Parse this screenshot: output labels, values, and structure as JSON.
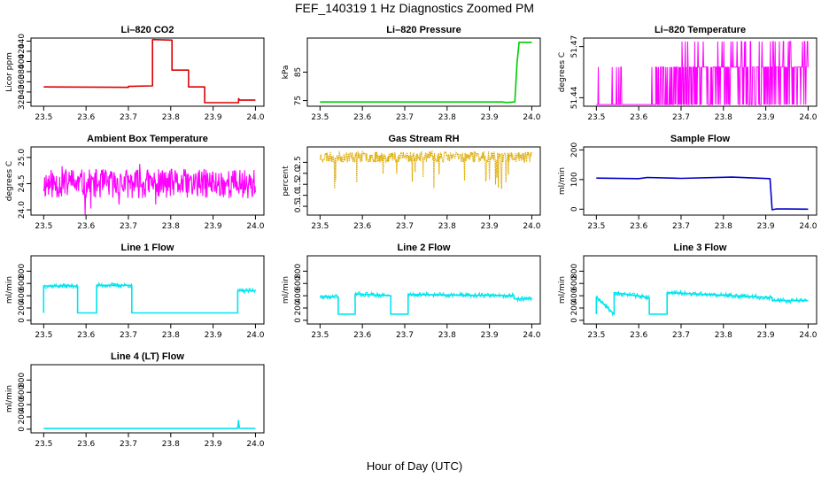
{
  "figure": {
    "title": "FEF_140319  1 Hz Diagnostics Zoomed PM",
    "xlabel": "Hour of Day (UTC)"
  },
  "chart_data": [
    {
      "type": "line",
      "title": "Li–820 CO2",
      "ylabel": "Licor ppm",
      "color": "#dd0000",
      "xlim": [
        23.47,
        24.02
      ],
      "xticks": [
        "23.5",
        "23.6",
        "23.7",
        "23.8",
        "23.9",
        "24.0"
      ],
      "ylim": [
        312,
        446
      ],
      "yticks": [
        "320",
        "340",
        "360",
        "380",
        "400",
        "420",
        "440"
      ],
      "series": [
        {
          "x": [
            23.5,
            23.7,
            23.7,
            23.757,
            23.757,
            23.803,
            23.803,
            23.842,
            23.842,
            23.88,
            23.88,
            23.96,
            23.96,
            23.963,
            23.963,
            24.0
          ],
          "y": [
            350,
            349,
            351,
            352,
            443,
            442,
            383,
            383,
            350,
            350,
            319,
            319,
            327,
            324,
            324,
            324
          ]
        }
      ]
    },
    {
      "type": "line",
      "title": "Li–820 Pressure",
      "ylabel": "kPa",
      "color": "#00cc00",
      "xlim": [
        23.47,
        24.02
      ],
      "xticks": [
        "23.5",
        "23.6",
        "23.7",
        "23.8",
        "23.9",
        "24.0"
      ],
      "ylim": [
        73,
        97
      ],
      "yticks": [
        "75",
        "85"
      ],
      "series": [
        {
          "x": [
            23.5,
            23.93,
            23.94,
            23.96,
            23.965,
            23.97,
            24.0
          ],
          "y": [
            74.5,
            74.5,
            74.3,
            74.5,
            88,
            95.5,
            95.5
          ]
        }
      ]
    },
    {
      "type": "line",
      "title": "Li–820 Temperature",
      "ylabel": "degrees C",
      "color": "#ff00ff",
      "xlim": [
        23.47,
        24.02
      ],
      "xticks": [
        "23.5",
        "23.6",
        "23.7",
        "23.8",
        "23.9",
        "24.0"
      ],
      "ylim": [
        51.435,
        51.475
      ],
      "yticks": [
        "51.44",
        "51.47"
      ],
      "noise": {
        "kind": "binary",
        "low": 51.436,
        "high": 51.458,
        "extra": 51.473,
        "seed": 7,
        "segments": [
          [
            23.5,
            23.535,
            0.05
          ],
          [
            23.535,
            23.56,
            0.25
          ],
          [
            23.56,
            23.64,
            0.05
          ],
          [
            23.64,
            23.7,
            0.3
          ],
          [
            23.7,
            24.0,
            0.65
          ]
        ]
      }
    },
    {
      "type": "line",
      "title": "Ambient Box Temperature",
      "ylabel": "degrees C",
      "color": "#ff00ff",
      "xlim": [
        23.47,
        24.02
      ],
      "xticks": [
        "23.5",
        "23.6",
        "23.7",
        "23.8",
        "23.9",
        "24.0"
      ],
      "ylim": [
        23.9,
        25.2
      ],
      "yticks": [
        "24.0",
        "24.5",
        "25.0"
      ],
      "noise": {
        "kind": "band",
        "center": 24.5,
        "amp": 0.28,
        "spike": 0.6,
        "spikeProb": 0.03,
        "seed": 11,
        "segments": [
          [
            23.5,
            24.0,
            1
          ]
        ]
      }
    },
    {
      "type": "line",
      "title": "Gas Stream RH",
      "ylabel": "percent",
      "color": "#ddaa00",
      "xlim": [
        23.47,
        24.02
      ],
      "xticks": [
        "23.5",
        "23.6",
        "23.7",
        "23.8",
        "23.9",
        "24.0"
      ],
      "ylim": [
        0.1,
        3.2
      ],
      "yticks": [
        "0.5",
        "1.0",
        "1.5",
        "2.0",
        "2.5"
      ],
      "noise": {
        "kind": "band",
        "center": 2.75,
        "amp": 0.25,
        "spike": -1.5,
        "spikeProb": 0.04,
        "seed": 23,
        "segments": [
          [
            23.5,
            24.0,
            1
          ]
        ]
      }
    },
    {
      "type": "line",
      "title": "Sample Flow",
      "ylabel": "ml/min",
      "color": "#0000cc",
      "xlim": [
        23.47,
        24.02
      ],
      "xticks": [
        "23.5",
        "23.6",
        "23.7",
        "23.8",
        "23.9",
        "24.0"
      ],
      "ylim": [
        -20,
        210
      ],
      "yticks": [
        "0",
        "100",
        "200"
      ],
      "series": [
        {
          "x": [
            23.5,
            23.6,
            23.62,
            23.7,
            23.82,
            23.91,
            23.915,
            23.925,
            24.0
          ],
          "y": [
            105,
            103,
            107,
            104,
            108,
            103,
            -2,
            1,
            0
          ]
        }
      ]
    },
    {
      "type": "line",
      "title": "Line 1 Flow",
      "ylabel": "ml/min",
      "color": "#00e5ee",
      "xlim": [
        23.47,
        24.02
      ],
      "xticks": [
        "23.5",
        "23.6",
        "23.7",
        "23.8",
        "23.9",
        "24.0"
      ],
      "ylim": [
        -60,
        1050
      ],
      "yticks": [
        "0",
        "200",
        "400",
        "600",
        "800"
      ],
      "series": [
        {
          "x": [
            23.5,
            23.5,
            23.58,
            23.58,
            23.625,
            23.625,
            23.708,
            23.708,
            23.958,
            23.958,
            24.0
          ],
          "y": [
            120,
            560,
            560,
            120,
            120,
            570,
            570,
            120,
            120,
            480,
            480
          ]
        }
      ]
    },
    {
      "type": "line",
      "title": "Line 2 Flow",
      "ylabel": "ml/min",
      "color": "#00e5ee",
      "xlim": [
        23.47,
        24.02
      ],
      "xticks": [
        "23.5",
        "23.6",
        "23.7",
        "23.8",
        "23.9",
        "24.0"
      ],
      "ylim": [
        -60,
        1050
      ],
      "yticks": [
        "0",
        "200",
        "400",
        "600",
        "800"
      ],
      "series": [
        {
          "x": [
            23.5,
            23.543,
            23.543,
            23.583,
            23.583,
            23.667,
            23.667,
            23.708,
            23.708,
            23.958,
            23.958,
            24.0
          ],
          "y": [
            380,
            380,
            100,
            100,
            430,
            400,
            100,
            100,
            420,
            400,
            350,
            350
          ]
        }
      ]
    },
    {
      "type": "line",
      "title": "Line 3 Flow",
      "ylabel": "ml/min",
      "color": "#00e5ee",
      "xlim": [
        23.47,
        24.02
      ],
      "xticks": [
        "23.5",
        "23.6",
        "23.7",
        "23.8",
        "23.9",
        "24.0"
      ],
      "ylim": [
        -60,
        1050
      ],
      "yticks": [
        "0",
        "200",
        "400",
        "600",
        "800"
      ],
      "series": [
        {
          "x": [
            23.5,
            23.5,
            23.542,
            23.542,
            23.625,
            23.625,
            23.667,
            23.667,
            23.915,
            23.915,
            24.0
          ],
          "y": [
            100,
            380,
            100,
            450,
            370,
            100,
            100,
            450,
            370,
            320,
            320
          ]
        }
      ]
    },
    {
      "type": "line",
      "title": "Line 4 (LT) Flow",
      "ylabel": "ml/min",
      "color": "#00e5ee",
      "xlim": [
        23.47,
        24.02
      ],
      "xticks": [
        "23.5",
        "23.6",
        "23.7",
        "23.8",
        "23.9",
        "24.0"
      ],
      "ylim": [
        -60,
        1050
      ],
      "yticks": [
        "0",
        "200",
        "400",
        "600",
        "800"
      ],
      "series": [
        {
          "x": [
            23.5,
            23.958,
            23.96,
            23.962,
            24.0
          ],
          "y": [
            10,
            10,
            140,
            15,
            10
          ]
        }
      ]
    }
  ]
}
